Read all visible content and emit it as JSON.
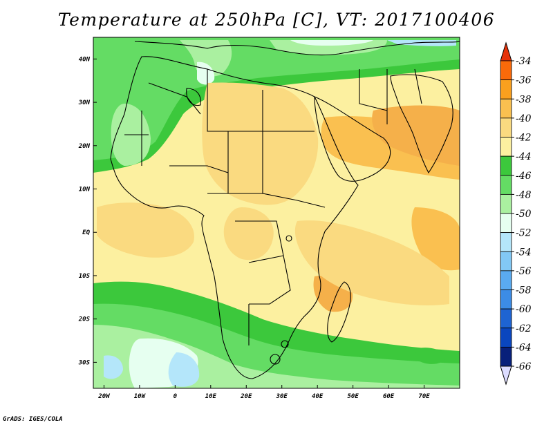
{
  "title": "Temperature at 250hPa [C], VT: 2017100406",
  "footer": "GrADS: IGES/COLA",
  "map": {
    "lon_range": [
      -23,
      80
    ],
    "lat_range": [
      -36,
      45
    ],
    "lon_ticks": [
      {
        "value": -20,
        "label": "20W"
      },
      {
        "value": -10,
        "label": "10W"
      },
      {
        "value": 0,
        "label": "0"
      },
      {
        "value": 10,
        "label": "10E"
      },
      {
        "value": 20,
        "label": "20E"
      },
      {
        "value": 30,
        "label": "30E"
      },
      {
        "value": 40,
        "label": "40E"
      },
      {
        "value": 50,
        "label": "50E"
      },
      {
        "value": 60,
        "label": "60E"
      },
      {
        "value": 70,
        "label": "70E"
      }
    ],
    "lat_ticks": [
      {
        "value": 40,
        "label": "40N"
      },
      {
        "value": 30,
        "label": "30N"
      },
      {
        "value": 20,
        "label": "20N"
      },
      {
        "value": 10,
        "label": "10N"
      },
      {
        "value": 0,
        "label": "EQ"
      },
      {
        "value": -10,
        "label": "10S"
      },
      {
        "value": -20,
        "label": "20S"
      },
      {
        "value": -30,
        "label": "30S"
      }
    ]
  },
  "colorbar": {
    "labels": [
      "-34",
      "-36",
      "-38",
      "-40",
      "-42",
      "-44",
      "-46",
      "-48",
      "-50",
      "-52",
      "-54",
      "-56",
      "-58",
      "-60",
      "-62",
      "-64",
      "-66"
    ],
    "colors": [
      "#f03c0a",
      "#fa6a0a",
      "#faa01e",
      "#fac050",
      "#fada80",
      "#fcf0a0",
      "#3cc83c",
      "#64dc64",
      "#aaf0a0",
      "#e6fff0",
      "#b4e6fa",
      "#82c8f5",
      "#5aaaf0",
      "#3c8ce6",
      "#1e64d2",
      "#0a46be",
      "#08207a"
    ],
    "top_arrow_color": "#e6320a",
    "bottom_arrow_color": "#dcdcff"
  }
}
